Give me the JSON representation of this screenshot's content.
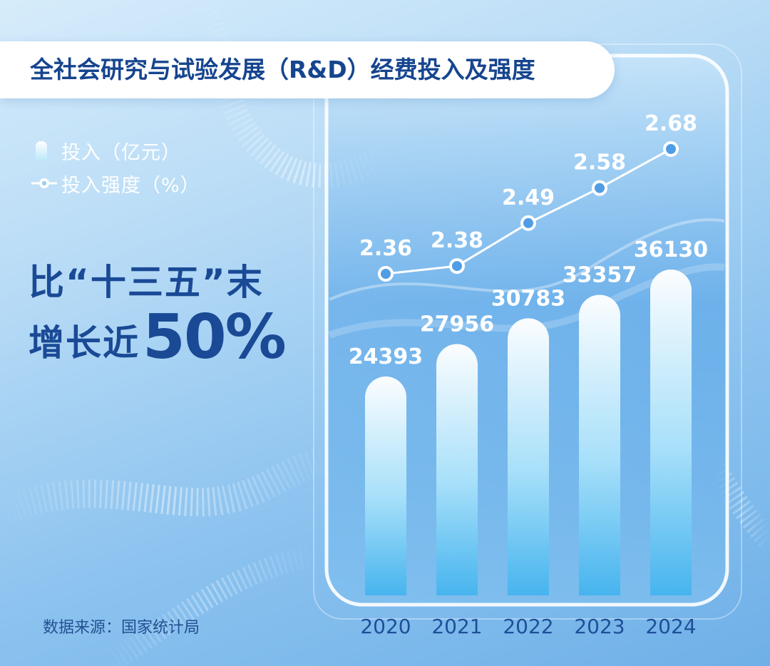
{
  "title": "全社会研究与试验发展（R&D）经费投入及强度",
  "legend": {
    "investment": "投入（亿元）",
    "intensity": "投入强度（%）"
  },
  "headline": {
    "line1": "比“十三五”末",
    "line2_text": "增长近",
    "line2_big": "50%"
  },
  "source": "数据来源：国家统计局",
  "colors": {
    "title_text": "#16458f",
    "headline_text": "#1a4a96",
    "bar_top": "#ffffff",
    "bar_bottom": "#45b4ee",
    "line": "#ffffff"
  },
  "chart_data": {
    "type": "bar+line",
    "categories": [
      "2020",
      "2021",
      "2022",
      "2023",
      "2024"
    ],
    "series": [
      {
        "name": "投入（亿元）",
        "type": "bar",
        "values": [
          24393,
          27956,
          30783,
          33357,
          36130
        ]
      },
      {
        "name": "投入强度（%）",
        "type": "line",
        "values": [
          2.36,
          2.38,
          2.49,
          2.58,
          2.68
        ]
      }
    ],
    "value_labels": {
      "bar": [
        "24393",
        "27956",
        "30783",
        "33357",
        "36130"
      ],
      "line": [
        "2.36",
        "2.38",
        "2.49",
        "2.58",
        "2.68"
      ]
    },
    "ylim_bar": [
      0,
      36130
    ],
    "ylim_line": [
      2.36,
      2.68
    ],
    "legend_position": "top-left",
    "grid": false
  }
}
